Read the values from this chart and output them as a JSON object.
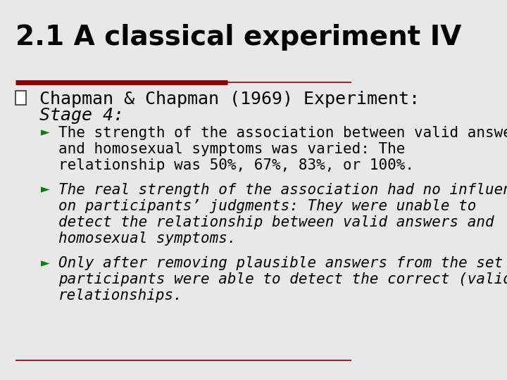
{
  "title": "2.1 A classical experiment IV",
  "background_color": "#E8E8E8",
  "title_color": "#000000",
  "title_fontsize": 28,
  "red_line_color": "#8B0000",
  "bullet1_text_line1": "Chapman & Chapman (1969) Experiment:",
  "bullet1_text_line2": "Stage 4:",
  "bullet1_fontsize": 18,
  "sub_bullet_color": "#008000",
  "sub_bullet_marker": "►",
  "sub_bullet_fontsize": 15,
  "sub_bullets": [
    {
      "lines": [
        "The strength of the association between valid answers",
        "and homosexual symptoms was varied: The",
        "relationship was 50%, 67%, 83%, or 100%."
      ],
      "italic": false
    },
    {
      "lines": [
        "The real strength of the association had no influence",
        "on participants’ judgments: They were unable to",
        "detect the relationship between valid answers and",
        "homosexual symptoms."
      ],
      "italic": true
    },
    {
      "lines": [
        "Only after removing plausible answers from the set",
        "participants were able to detect the correct (valid)",
        "relationships."
      ],
      "italic": true
    }
  ],
  "bottom_line_color": "#8B0000",
  "figsize": [
    7.2,
    5.4
  ],
  "dpi": 100
}
